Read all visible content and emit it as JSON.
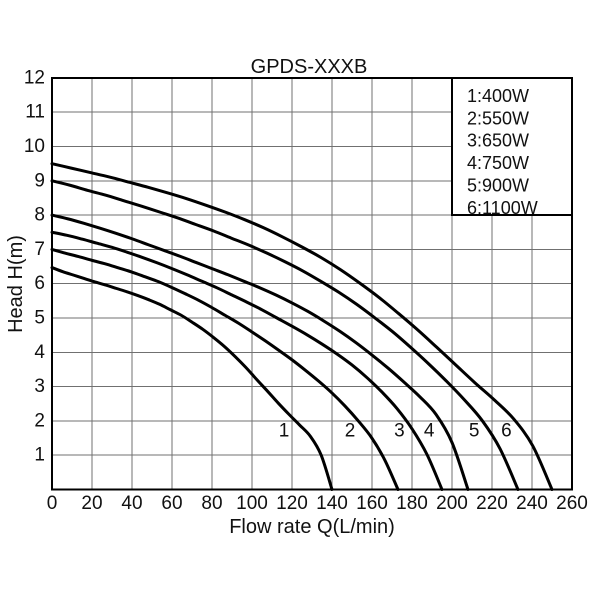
{
  "page": {
    "background": "#ffffff"
  },
  "chart_data": {
    "type": "line",
    "title": "GPDS-XXXB",
    "xlabel": "Flow rate Q(L/min)",
    "ylabel": "Head H(m)",
    "xlim": [
      0,
      260
    ],
    "ylim": [
      0,
      12
    ],
    "x_ticks": [
      0,
      20,
      40,
      60,
      80,
      100,
      120,
      140,
      160,
      180,
      200,
      220,
      240,
      260
    ],
    "y_ticks": [
      1,
      2,
      3,
      4,
      5,
      6,
      7,
      8,
      9,
      10,
      11,
      12
    ],
    "grid": {
      "on": true,
      "x_step": 20,
      "y_step": 1,
      "color": "#707070"
    },
    "axis_color": "#000000",
    "curve_color": "#000000",
    "legend": {
      "position": "top-right",
      "border_color": "#000000",
      "background": "#ffffff",
      "entries": [
        "1:400W",
        "2:550W",
        "3:650W",
        "4:750W",
        "5:900W",
        "6:1100W"
      ]
    },
    "series": [
      {
        "name": "1:400W",
        "curve_label": "1",
        "label_at": {
          "q": 116.0,
          "h": 1.71
        },
        "shutoff_head_m": 6.5,
        "max_flow_l_min": 140,
        "points": [
          [
            0.0,
            6.47
          ],
          [
            5.4,
            6.35
          ],
          [
            10.8,
            6.25
          ],
          [
            16.2,
            6.15
          ],
          [
            21.5,
            6.05
          ],
          [
            26.9,
            5.96
          ],
          [
            32.3,
            5.86
          ],
          [
            37.7,
            5.76
          ],
          [
            43.1,
            5.65
          ],
          [
            48.5,
            5.53
          ],
          [
            53.8,
            5.4
          ],
          [
            59.2,
            5.24
          ],
          [
            64.6,
            5.08
          ],
          [
            70.0,
            4.88
          ],
          [
            75.4,
            4.67
          ],
          [
            80.8,
            4.43
          ],
          [
            86.2,
            4.17
          ],
          [
            91.5,
            3.88
          ],
          [
            96.9,
            3.56
          ],
          [
            102.3,
            3.21
          ],
          [
            107.7,
            2.87
          ],
          [
            113.1,
            2.52
          ],
          [
            118.5,
            2.19
          ],
          [
            123.8,
            1.88
          ],
          [
            129.2,
            1.55
          ],
          [
            134.6,
            1.0
          ],
          [
            140.0,
            0.0
          ]
        ]
      },
      {
        "name": "2:550W",
        "curve_label": "2",
        "label_at": {
          "q": 149.0,
          "h": 1.71
        },
        "shutoff_head_m": 7.0,
        "max_flow_l_min": 173,
        "points": [
          [
            0.0,
            7.0
          ],
          [
            6.7,
            6.89
          ],
          [
            13.3,
            6.79
          ],
          [
            20.0,
            6.68
          ],
          [
            26.6,
            6.58
          ],
          [
            33.3,
            6.46
          ],
          [
            39.9,
            6.34
          ],
          [
            46.6,
            6.2
          ],
          [
            53.2,
            6.06
          ],
          [
            59.9,
            5.89
          ],
          [
            66.5,
            5.71
          ],
          [
            73.2,
            5.52
          ],
          [
            79.8,
            5.31
          ],
          [
            86.5,
            5.08
          ],
          [
            93.2,
            4.85
          ],
          [
            99.8,
            4.6
          ],
          [
            106.5,
            4.34
          ],
          [
            113.1,
            4.07
          ],
          [
            119.8,
            3.79
          ],
          [
            126.4,
            3.49
          ],
          [
            133.1,
            3.17
          ],
          [
            139.7,
            2.83
          ],
          [
            146.4,
            2.44
          ],
          [
            153.0,
            2.01
          ],
          [
            159.7,
            1.52
          ],
          [
            166.3,
            0.87
          ],
          [
            173.0,
            0.0
          ]
        ]
      },
      {
        "name": "3:650W",
        "curve_label": "3",
        "label_at": {
          "q": 173.7,
          "h": 1.71
        },
        "shutoff_head_m": 7.5,
        "max_flow_l_min": 195,
        "points": [
          [
            0.0,
            7.5
          ],
          [
            7.5,
            7.41
          ],
          [
            15.0,
            7.3
          ],
          [
            22.5,
            7.18
          ],
          [
            30.0,
            7.06
          ],
          [
            37.5,
            6.92
          ],
          [
            45.0,
            6.77
          ],
          [
            52.5,
            6.61
          ],
          [
            60.0,
            6.44
          ],
          [
            67.5,
            6.26
          ],
          [
            75.0,
            6.07
          ],
          [
            82.5,
            5.88
          ],
          [
            90.0,
            5.67
          ],
          [
            97.5,
            5.46
          ],
          [
            105.0,
            5.24
          ],
          [
            112.5,
            5.0
          ],
          [
            120.0,
            4.76
          ],
          [
            127.5,
            4.51
          ],
          [
            135.0,
            4.24
          ],
          [
            142.5,
            3.95
          ],
          [
            150.0,
            3.63
          ],
          [
            157.5,
            3.26
          ],
          [
            165.0,
            2.84
          ],
          [
            172.5,
            2.36
          ],
          [
            180.0,
            1.77
          ],
          [
            187.5,
            1.02
          ],
          [
            195.0,
            0.0
          ]
        ]
      },
      {
        "name": "4:750W",
        "curve_label": "4",
        "label_at": {
          "q": 188.6,
          "h": 1.71
        },
        "shutoff_head_m": 8.0,
        "max_flow_l_min": 208,
        "points": [
          [
            0.0,
            8.0
          ],
          [
            8.0,
            7.89
          ],
          [
            16.0,
            7.76
          ],
          [
            24.0,
            7.62
          ],
          [
            32.0,
            7.47
          ],
          [
            40.0,
            7.31
          ],
          [
            48.0,
            7.14
          ],
          [
            56.0,
            6.97
          ],
          [
            64.0,
            6.8
          ],
          [
            72.0,
            6.62
          ],
          [
            80.0,
            6.44
          ],
          [
            88.0,
            6.26
          ],
          [
            96.0,
            6.07
          ],
          [
            104.0,
            5.88
          ],
          [
            112.0,
            5.67
          ],
          [
            120.0,
            5.44
          ],
          [
            128.0,
            5.19
          ],
          [
            136.0,
            4.91
          ],
          [
            144.0,
            4.61
          ],
          [
            152.0,
            4.28
          ],
          [
            160.0,
            3.92
          ],
          [
            168.0,
            3.54
          ],
          [
            176.0,
            3.13
          ],
          [
            184.0,
            2.7
          ],
          [
            192.0,
            2.19
          ],
          [
            200.0,
            1.37
          ],
          [
            208.0,
            0.0
          ]
        ]
      },
      {
        "name": "5:900W",
        "curve_label": "5",
        "label_at": {
          "q": 211.1,
          "h": 1.71
        },
        "shutoff_head_m": 9.0,
        "max_flow_l_min": 233,
        "points": [
          [
            0.0,
            9.0
          ],
          [
            9.0,
            8.87
          ],
          [
            17.9,
            8.72
          ],
          [
            26.9,
            8.58
          ],
          [
            35.8,
            8.42
          ],
          [
            44.8,
            8.26
          ],
          [
            53.8,
            8.09
          ],
          [
            62.7,
            7.92
          ],
          [
            71.7,
            7.73
          ],
          [
            80.7,
            7.54
          ],
          [
            89.6,
            7.33
          ],
          [
            98.6,
            7.12
          ],
          [
            107.5,
            6.89
          ],
          [
            116.5,
            6.64
          ],
          [
            125.5,
            6.37
          ],
          [
            134.4,
            6.07
          ],
          [
            143.4,
            5.75
          ],
          [
            152.3,
            5.4
          ],
          [
            161.3,
            5.01
          ],
          [
            170.3,
            4.6
          ],
          [
            179.2,
            4.15
          ],
          [
            188.2,
            3.67
          ],
          [
            197.2,
            3.16
          ],
          [
            206.1,
            2.62
          ],
          [
            215.1,
            2.01
          ],
          [
            224.0,
            1.19
          ],
          [
            233.0,
            0.0
          ]
        ]
      },
      {
        "name": "6:1100W",
        "curve_label": "6",
        "label_at": {
          "q": 227.2,
          "h": 1.71
        },
        "shutoff_head_m": 9.5,
        "max_flow_l_min": 250,
        "points": [
          [
            0.0,
            9.5
          ],
          [
            9.6,
            9.37
          ],
          [
            19.2,
            9.24
          ],
          [
            28.8,
            9.11
          ],
          [
            38.5,
            8.96
          ],
          [
            48.1,
            8.81
          ],
          [
            57.7,
            8.65
          ],
          [
            67.3,
            8.48
          ],
          [
            76.9,
            8.29
          ],
          [
            86.5,
            8.09
          ],
          [
            96.2,
            7.87
          ],
          [
            105.8,
            7.63
          ],
          [
            115.4,
            7.36
          ],
          [
            125.0,
            7.07
          ],
          [
            134.6,
            6.76
          ],
          [
            144.2,
            6.41
          ],
          [
            153.8,
            6.02
          ],
          [
            163.5,
            5.6
          ],
          [
            173.1,
            5.14
          ],
          [
            182.7,
            4.66
          ],
          [
            192.3,
            4.15
          ],
          [
            201.9,
            3.63
          ],
          [
            211.5,
            3.11
          ],
          [
            221.2,
            2.61
          ],
          [
            230.8,
            2.06
          ],
          [
            240.4,
            1.27
          ],
          [
            250.0,
            0.0
          ]
        ]
      }
    ]
  }
}
